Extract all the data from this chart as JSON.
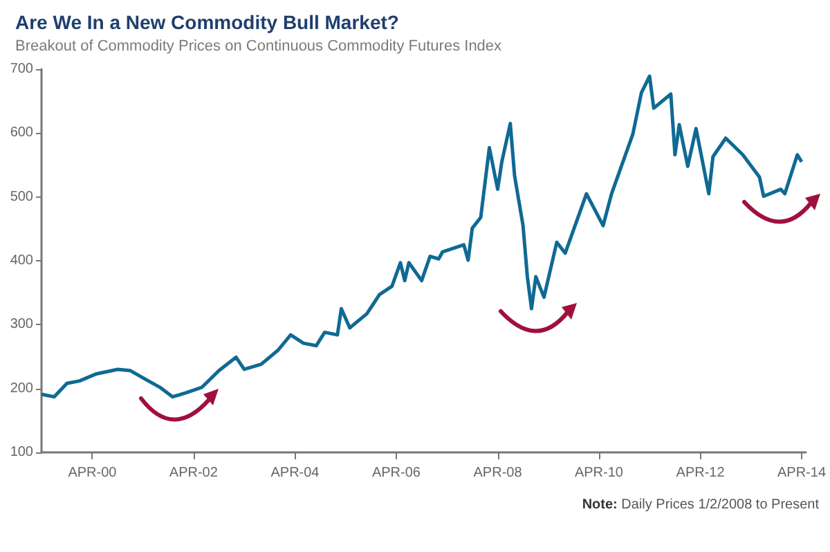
{
  "chart_data": {
    "type": "line",
    "title": "Are We In a New Commodity Bull Market?",
    "subtitle": "Breakout of Commodity Prices on Continuous Commodity Futures Index",
    "annotations": [
      "Note: Daily Prices 1/2/2008 to Present"
    ],
    "x": [
      "1999-04",
      "1999-07",
      "1999-10",
      "2000-01",
      "2000-05",
      "2000-10",
      "2001-01",
      "2001-05",
      "2001-08",
      "2001-11",
      "2002-02",
      "2002-06",
      "2002-10",
      "2003-02",
      "2003-04",
      "2003-08",
      "2003-12",
      "2004-03",
      "2004-06",
      "2004-09",
      "2004-11",
      "2005-02",
      "2005-03",
      "2005-05",
      "2005-09",
      "2005-12",
      "2006-03",
      "2006-05",
      "2006-06",
      "2006-07",
      "2006-10",
      "2006-12",
      "2007-02",
      "2007-03",
      "2007-08",
      "2007-09",
      "2007-10",
      "2007-12",
      "2008-02",
      "2008-04",
      "2008-05",
      "2008-07",
      "2008-08",
      "2008-10",
      "2008-11",
      "2008-12",
      "2009-01",
      "2009-03",
      "2009-06",
      "2009-08",
      "2010-01",
      "2010-05",
      "2010-07",
      "2010-12",
      "2011-02",
      "2011-04",
      "2011-05",
      "2011-09",
      "2011-10",
      "2011-11",
      "2012-01",
      "2012-03",
      "2012-06",
      "2012-07",
      "2012-10",
      "2013-02",
      "2013-06",
      "2013-07",
      "2013-11",
      "2013-12",
      "2014-03",
      "2014-04"
    ],
    "series": [
      {
        "color": "#0f6a93",
        "values": [
          191,
          187,
          208,
          212,
          223,
          230,
          228,
          213,
          202,
          187,
          193,
          202,
          228,
          249,
          230,
          238,
          260,
          284,
          271,
          267,
          288,
          284,
          325,
          295,
          317,
          347,
          360,
          397,
          369,
          397,
          369,
          407,
          403,
          414,
          425,
          401,
          451,
          468,
          577,
          512,
          555,
          615,
          533,
          455,
          375,
          325,
          375,
          343,
          429,
          412,
          505,
          455,
          505,
          598,
          663,
          689,
          639,
          661,
          566,
          613,
          548,
          607,
          505,
          563,
          592,
          566,
          531,
          501,
          512,
          505,
          566,
          555
        ]
      }
    ],
    "xlim": [
      "1999-04",
      "2014-05"
    ],
    "xticks": [
      {
        "value": "2000-04",
        "label": "APR-00"
      },
      {
        "value": "2002-04",
        "label": "APR-02"
      },
      {
        "value": "2004-04",
        "label": "APR-04"
      },
      {
        "value": "2006-04",
        "label": "APR-06"
      },
      {
        "value": "2008-04",
        "label": "APR-08"
      },
      {
        "value": "2010-04",
        "label": "APR-10"
      },
      {
        "value": "2012-04",
        "label": "APR-12"
      },
      {
        "value": "2014-04",
        "label": "APR-14"
      }
    ],
    "ylim": [
      100,
      700
    ],
    "yticks": [
      100,
      200,
      300,
      400,
      500,
      600,
      700
    ],
    "marker": "none",
    "line_style": "solid"
  }
}
